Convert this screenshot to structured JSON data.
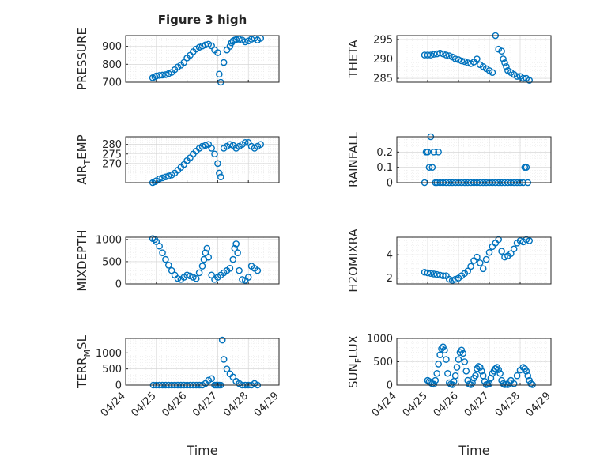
{
  "figure": {
    "title": "Figure 3 high",
    "xlabel": "Time",
    "x_tick_labels": [
      "04/24",
      "04/25",
      "04/26",
      "04/27",
      "04/28",
      "04/29"
    ]
  },
  "chart_data": [
    {
      "type": "scatter",
      "ylabel": "PRESSURE",
      "title": "Figure 3 high",
      "ylim": [
        700,
        960
      ],
      "yticks": [
        700,
        800,
        900
      ],
      "xlim": [
        "04/24",
        "04/29"
      ],
      "grid": true,
      "x": [
        0.88,
        0.95,
        1.0,
        1.1,
        1.2,
        1.3,
        1.4,
        1.5,
        1.6,
        1.7,
        1.8,
        1.9,
        2.0,
        2.1,
        2.2,
        2.3,
        2.4,
        2.5,
        2.6,
        2.7,
        2.8,
        2.9,
        3.0,
        3.05,
        3.1,
        3.2,
        3.3,
        3.4,
        3.45,
        3.5,
        3.55,
        3.6,
        3.7,
        3.8,
        3.9,
        4.0,
        4.1,
        4.2,
        4.3,
        4.4
      ],
      "y": [
        725,
        730,
        735,
        738,
        740,
        742,
        748,
        755,
        770,
        785,
        795,
        810,
        835,
        850,
        870,
        885,
        895,
        902,
        908,
        912,
        903,
        880,
        865,
        745,
        700,
        810,
        880,
        900,
        920,
        930,
        935,
        938,
        940,
        935,
        925,
        930,
        940,
        945,
        935,
        945
      ],
      "series": [
        {
          "name": "",
          "color": "#0072BD"
        }
      ]
    },
    {
      "type": "scatter",
      "ylabel": "THETA",
      "ylim": [
        284,
        296
      ],
      "yticks": [
        285,
        290,
        295
      ],
      "xlim": [
        "04/24",
        "04/29"
      ],
      "grid": true,
      "x": [
        0.9,
        1.0,
        1.1,
        1.2,
        1.3,
        1.4,
        1.5,
        1.6,
        1.7,
        1.8,
        1.9,
        2.0,
        2.1,
        2.2,
        2.3,
        2.4,
        2.5,
        2.6,
        2.7,
        2.8,
        2.9,
        3.0,
        3.1,
        3.2,
        3.3,
        3.4,
        3.45,
        3.5,
        3.55,
        3.6,
        3.7,
        3.8,
        3.9,
        4.0,
        4.1,
        4.2,
        4.3
      ],
      "y": [
        291,
        291,
        291,
        291.2,
        291.3,
        291.5,
        291.3,
        291,
        290.8,
        290.5,
        290,
        289.8,
        289.5,
        289.3,
        289,
        288.8,
        289.2,
        290,
        288.5,
        288,
        287.5,
        287,
        286.5,
        296,
        292.5,
        292,
        290,
        289,
        288,
        287,
        286.5,
        286,
        285.5,
        285.5,
        285,
        285,
        284.5
      ],
      "series": [
        {
          "name": "",
          "color": "#0072BD"
        }
      ]
    },
    {
      "type": "scatter",
      "ylabel": "AIR_TEMP",
      "ylim": [
        260,
        284
      ],
      "yticks": [
        270,
        275,
        280
      ],
      "xlim": [
        "04/24",
        "04/29"
      ],
      "grid": true,
      "x": [
        0.88,
        0.95,
        1.0,
        1.1,
        1.2,
        1.3,
        1.4,
        1.5,
        1.6,
        1.7,
        1.8,
        1.9,
        2.0,
        2.1,
        2.2,
        2.3,
        2.4,
        2.5,
        2.6,
        2.7,
        2.8,
        2.9,
        3.0,
        3.05,
        3.1,
        3.2,
        3.3,
        3.4,
        3.5,
        3.6,
        3.7,
        3.8,
        3.9,
        4.0,
        4.1,
        4.2,
        4.3,
        4.4
      ],
      "y": [
        260,
        260.5,
        261,
        262,
        262.5,
        263,
        263.5,
        264,
        265,
        266.5,
        268,
        269.5,
        271.5,
        273,
        275,
        276.5,
        278,
        279,
        279.5,
        280,
        278,
        275,
        270,
        265,
        263,
        278,
        279,
        280,
        279.5,
        278,
        279,
        280,
        281,
        281,
        279,
        278,
        279,
        280
      ],
      "series": [
        {
          "name": "",
          "color": "#0072BD"
        }
      ]
    },
    {
      "type": "scatter",
      "ylabel": "RAINFALL",
      "ylim": [
        0,
        0.3
      ],
      "yticks": [
        0,
        0.1,
        0.2
      ],
      "xlim": [
        "04/24",
        "04/29"
      ],
      "grid": true,
      "x": [
        0.9,
        0.95,
        1.0,
        1.05,
        1.1,
        1.15,
        1.2,
        1.25,
        1.3,
        1.35,
        1.4,
        1.5,
        1.6,
        1.7,
        1.8,
        1.9,
        2.0,
        2.1,
        2.2,
        2.3,
        2.4,
        2.5,
        2.6,
        2.7,
        2.8,
        2.9,
        3.0,
        3.1,
        3.2,
        3.3,
        3.4,
        3.5,
        3.6,
        3.7,
        3.8,
        3.9,
        4.0,
        4.1,
        4.15,
        4.2,
        4.25
      ],
      "y": [
        0,
        0.2,
        0.2,
        0.1,
        0.3,
        0.1,
        0.2,
        0,
        0,
        0.2,
        0,
        0,
        0,
        0,
        0,
        0,
        0,
        0,
        0,
        0,
        0,
        0,
        0,
        0,
        0,
        0,
        0,
        0,
        0,
        0,
        0,
        0,
        0,
        0,
        0,
        0,
        0,
        0,
        0.1,
        0.1,
        0
      ],
      "series": [
        {
          "name": "",
          "color": "#0072BD"
        }
      ]
    },
    {
      "type": "scatter",
      "ylabel": "MIXDEPTH",
      "ylim": [
        0,
        1050
      ],
      "yticks": [
        0,
        500,
        1000
      ],
      "xlim": [
        "04/24",
        "04/29"
      ],
      "grid": true,
      "x": [
        0.88,
        0.95,
        1.0,
        1.1,
        1.2,
        1.3,
        1.4,
        1.5,
        1.6,
        1.7,
        1.8,
        1.9,
        2.0,
        2.1,
        2.2,
        2.3,
        2.4,
        2.5,
        2.55,
        2.6,
        2.65,
        2.7,
        2.8,
        2.9,
        3.0,
        3.1,
        3.2,
        3.3,
        3.4,
        3.5,
        3.55,
        3.6,
        3.65,
        3.7,
        3.8,
        3.9,
        4.0,
        4.1,
        4.2,
        4.3
      ],
      "y": [
        1020,
        1000,
        950,
        850,
        700,
        550,
        420,
        300,
        200,
        120,
        100,
        150,
        200,
        180,
        150,
        120,
        250,
        400,
        550,
        700,
        800,
        600,
        200,
        100,
        150,
        200,
        250,
        300,
        350,
        550,
        800,
        900,
        700,
        300,
        100,
        80,
        150,
        400,
        350,
        300
      ],
      "series": [
        {
          "name": "",
          "color": "#0072BD"
        }
      ]
    },
    {
      "type": "scatter",
      "ylabel": "H2OMIXRA",
      "ylim": [
        1.5,
        5.5
      ],
      "yticks": [
        2,
        4
      ],
      "xlim": [
        "04/24",
        "04/29"
      ],
      "grid": true,
      "x": [
        0.9,
        1.0,
        1.1,
        1.2,
        1.3,
        1.4,
        1.5,
        1.6,
        1.7,
        1.8,
        1.9,
        2.0,
        2.1,
        2.2,
        2.3,
        2.4,
        2.5,
        2.6,
        2.7,
        2.8,
        2.9,
        3.0,
        3.1,
        3.2,
        3.3,
        3.4,
        3.5,
        3.6,
        3.7,
        3.8,
        3.9,
        4.0,
        4.1,
        4.2,
        4.3
      ],
      "y": [
        2.5,
        2.45,
        2.4,
        2.35,
        2.3,
        2.25,
        2.2,
        2.2,
        1.9,
        1.8,
        1.9,
        2.0,
        2.2,
        2.4,
        2.6,
        3.0,
        3.5,
        3.8,
        3.3,
        2.8,
        3.6,
        4.2,
        4.7,
        5.0,
        5.3,
        4.3,
        3.8,
        3.9,
        4.1,
        4.5,
        5.0,
        5.2,
        5.1,
        5.3,
        5.2
      ],
      "series": [
        {
          "name": "",
          "color": "#0072BD"
        }
      ]
    },
    {
      "type": "scatter",
      "ylabel": "TERR_MSL",
      "ylim": [
        0,
        1450
      ],
      "yticks": [
        0,
        500,
        1000
      ],
      "xlim": [
        "04/24",
        "04/29"
      ],
      "grid": true,
      "x": [
        0.9,
        1.0,
        1.1,
        1.2,
        1.3,
        1.4,
        1.5,
        1.6,
        1.7,
        1.8,
        1.9,
        2.0,
        2.1,
        2.2,
        2.3,
        2.4,
        2.5,
        2.6,
        2.7,
        2.8,
        2.9,
        2.95,
        3.0,
        3.05,
        3.1,
        3.15,
        3.2,
        3.3,
        3.4,
        3.5,
        3.6,
        3.7,
        3.8,
        3.9,
        4.0,
        4.1,
        4.2,
        4.3
      ],
      "y": [
        0,
        0,
        0,
        0,
        0,
        0,
        0,
        0,
        0,
        0,
        0,
        0,
        0,
        0,
        0,
        0,
        0,
        50,
        150,
        200,
        0,
        0,
        0,
        0,
        0,
        1400,
        800,
        500,
        350,
        250,
        120,
        50,
        0,
        0,
        0,
        0,
        50,
        0
      ],
      "series": [
        {
          "name": "",
          "color": "#0072BD"
        }
      ]
    },
    {
      "type": "scatter",
      "ylabel": "SUN_FLUX",
      "ylim": [
        0,
        1000
      ],
      "yticks": [
        0,
        500,
        1000
      ],
      "xlim": [
        "04/24",
        "04/29"
      ],
      "grid": true,
      "x": [
        1.0,
        1.05,
        1.1,
        1.15,
        1.2,
        1.25,
        1.3,
        1.35,
        1.4,
        1.45,
        1.5,
        1.55,
        1.6,
        1.65,
        1.7,
        1.75,
        1.8,
        1.85,
        1.9,
        1.95,
        2.0,
        2.05,
        2.1,
        2.15,
        2.2,
        2.25,
        2.3,
        2.35,
        2.4,
        2.45,
        2.5,
        2.55,
        2.6,
        2.65,
        2.7,
        2.75,
        2.8,
        2.85,
        2.9,
        2.95,
        3.0,
        3.05,
        3.1,
        3.15,
        3.2,
        3.25,
        3.3,
        3.35,
        3.4,
        3.45,
        3.5,
        3.55,
        3.6,
        3.65,
        3.7,
        3.8,
        3.9,
        4.0,
        4.1,
        4.15,
        4.2,
        4.25,
        4.3,
        4.35,
        4.4
      ],
      "y": [
        100,
        80,
        50,
        30,
        20,
        100,
        250,
        450,
        650,
        780,
        820,
        750,
        550,
        250,
        50,
        20,
        10,
        80,
        200,
        380,
        550,
        700,
        750,
        680,
        500,
        300,
        100,
        20,
        10,
        50,
        150,
        200,
        350,
        400,
        380,
        300,
        200,
        80,
        10,
        20,
        30,
        150,
        250,
        300,
        350,
        380,
        330,
        250,
        100,
        30,
        10,
        20,
        10,
        50,
        100,
        30,
        200,
        320,
        380,
        350,
        300,
        200,
        100,
        30,
        10
      ],
      "series": [
        {
          "name": "",
          "color": "#0072BD"
        }
      ]
    }
  ]
}
